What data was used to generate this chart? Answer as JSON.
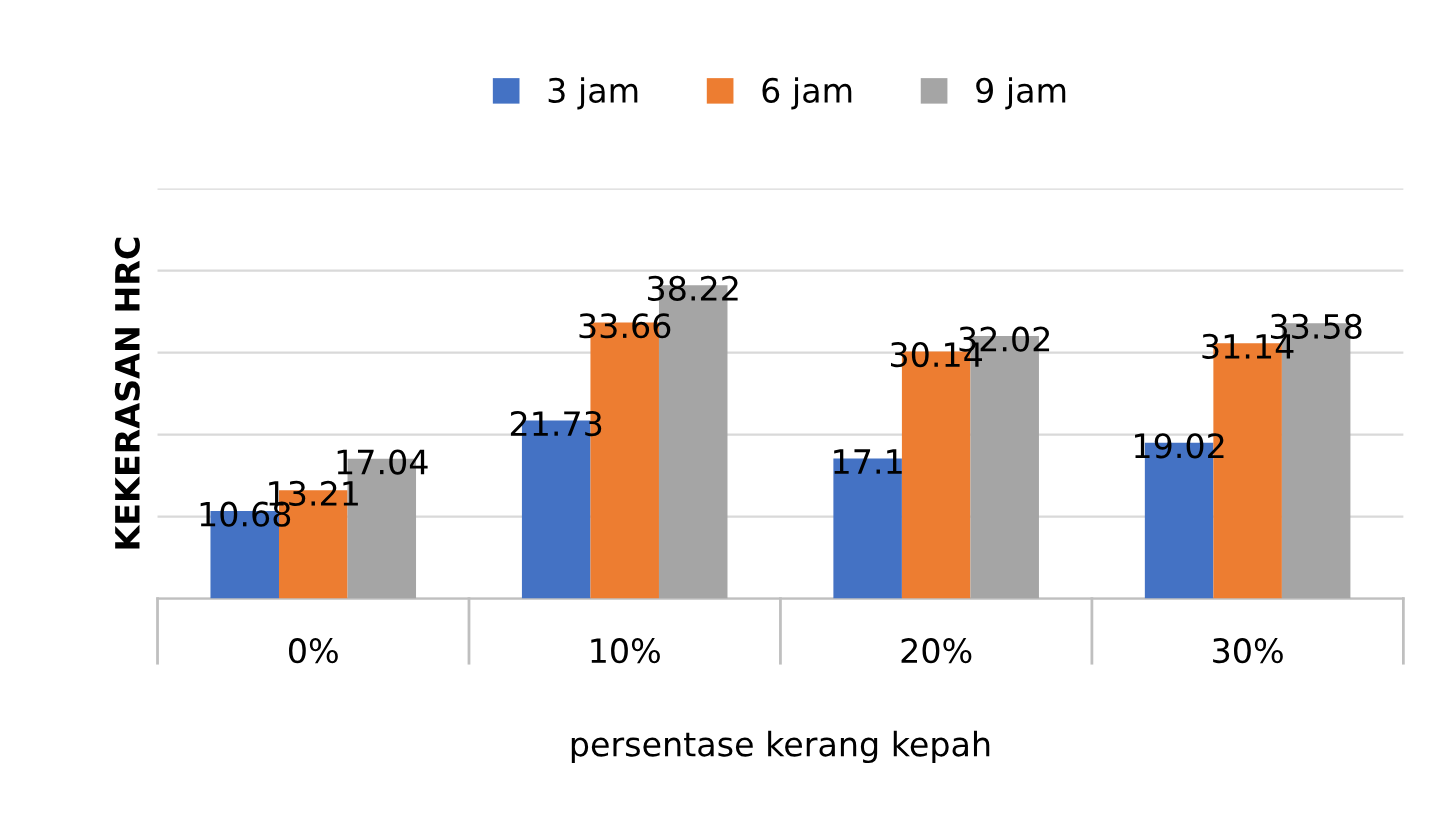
{
  "chart_data": {
    "type": "bar",
    "ylabel": "KEKERASAN HRC",
    "xlabel": "persentase kerang kepah",
    "categories": [
      "0%",
      "10%",
      "20%",
      "30%"
    ],
    "series": [
      {
        "name": "3 jam",
        "color": "#4472c4",
        "values": [
          10.68,
          21.73,
          17.1,
          19.02
        ]
      },
      {
        "name": "6 jam",
        "color": "#ed7d31",
        "values": [
          13.21,
          33.66,
          30.14,
          31.14
        ]
      },
      {
        "name": "9 jam",
        "color": "#a5a5a5",
        "values": [
          17.04,
          38.22,
          32.02,
          33.58
        ]
      }
    ],
    "ylim": [
      0,
      50
    ],
    "yticks": [
      {
        "value": 0,
        "label": null
      },
      {
        "value": 10,
        "label": null
      },
      {
        "value": 20,
        "label": null
      },
      {
        "value": 30,
        "label": null
      },
      {
        "value": 40,
        "label": null
      },
      {
        "value": 50,
        "label": null
      }
    ],
    "tick_labels": "x",
    "grid": "y",
    "legend": "top",
    "data_labels": true
  }
}
